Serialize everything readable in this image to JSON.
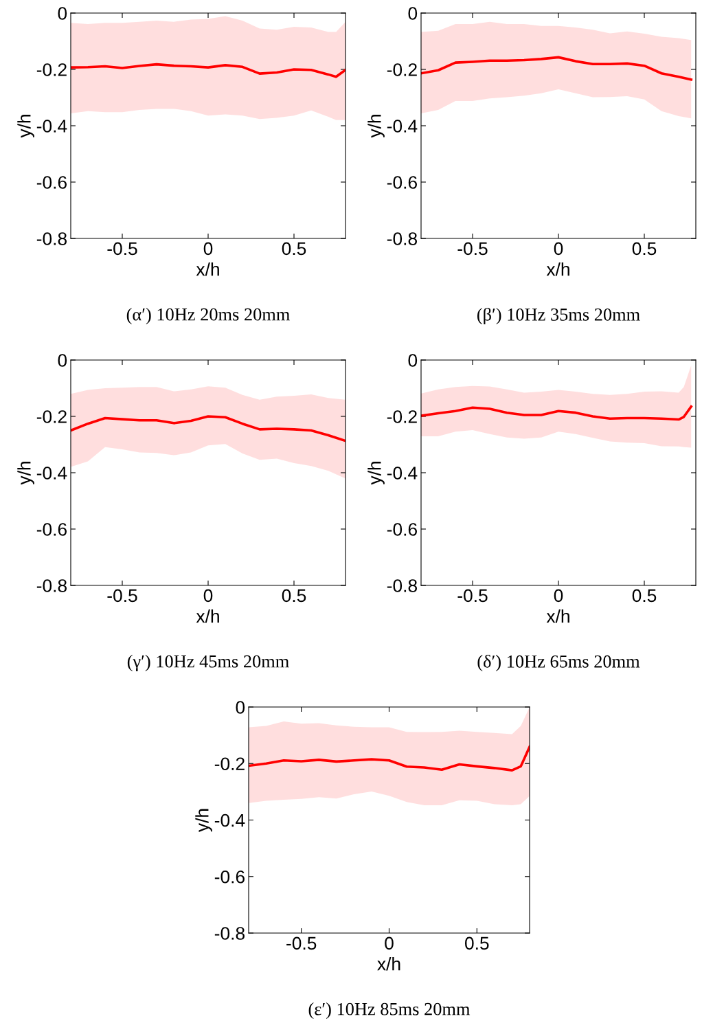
{
  "chart_data": [
    {
      "type": "line",
      "title": "(α′) 10Hz 20ms 20mm",
      "xlabel": "x/h",
      "ylabel": "y/h",
      "xlim": [
        -0.8,
        0.8
      ],
      "ylim": [
        -0.8,
        0
      ],
      "xticks": [
        -0.5,
        0,
        0.5
      ],
      "yticks": [
        0,
        -0.2,
        -0.4,
        -0.6,
        -0.8
      ],
      "grid": false,
      "x": [
        -0.8,
        -0.7,
        -0.6,
        -0.5,
        -0.4,
        -0.3,
        -0.2,
        -0.1,
        0,
        0.1,
        0.2,
        0.3,
        0.4,
        0.5,
        0.6,
        0.7,
        0.745,
        0.8
      ],
      "series": [
        {
          "color": "#ff0000",
          "values": [
            -0.193,
            -0.192,
            -0.189,
            -0.195,
            -0.188,
            -0.182,
            -0.187,
            -0.189,
            -0.193,
            -0.185,
            -0.191,
            -0.215,
            -0.211,
            -0.2,
            -0.202,
            -0.218,
            -0.226,
            -0.202
          ],
          "upper": [
            -0.035,
            -0.039,
            -0.035,
            -0.035,
            -0.031,
            -0.027,
            -0.031,
            -0.023,
            -0.021,
            -0.011,
            -0.027,
            -0.055,
            -0.059,
            -0.049,
            -0.051,
            -0.067,
            -0.067,
            -0.031
          ],
          "lower": [
            -0.356,
            -0.348,
            -0.352,
            -0.352,
            -0.344,
            -0.34,
            -0.34,
            -0.348,
            -0.364,
            -0.36,
            -0.364,
            -0.376,
            -0.372,
            -0.364,
            -0.346,
            -0.368,
            -0.38,
            -0.38
          ]
        }
      ]
    },
    {
      "type": "line",
      "title": "(β′) 10Hz 35ms 20mm",
      "xlabel": "x/h",
      "ylabel": "y/h",
      "xlim": [
        -0.8,
        0.8
      ],
      "ylim": [
        -0.8,
        0
      ],
      "xticks": [
        -0.5,
        0,
        0.5
      ],
      "yticks": [
        0,
        -0.2,
        -0.4,
        -0.6,
        -0.8
      ],
      "grid": false,
      "x": [
        -0.8,
        -0.7,
        -0.6,
        -0.5,
        -0.4,
        -0.3,
        -0.2,
        -0.1,
        0,
        0.1,
        0.2,
        0.3,
        0.4,
        0.5,
        0.6,
        0.7,
        0.773
      ],
      "series": [
        {
          "color": "#ff0000",
          "values": [
            -0.214,
            -0.203,
            -0.176,
            -0.173,
            -0.169,
            -0.169,
            -0.167,
            -0.163,
            -0.157,
            -0.171,
            -0.181,
            -0.181,
            -0.179,
            -0.187,
            -0.214,
            -0.226,
            -0.236
          ],
          "upper": [
            -0.067,
            -0.063,
            -0.039,
            -0.039,
            -0.031,
            -0.039,
            -0.039,
            -0.046,
            -0.046,
            -0.051,
            -0.059,
            -0.072,
            -0.065,
            -0.073,
            -0.084,
            -0.089,
            -0.096
          ],
          "lower": [
            -0.356,
            -0.344,
            -0.312,
            -0.312,
            -0.303,
            -0.299,
            -0.293,
            -0.285,
            -0.271,
            -0.285,
            -0.299,
            -0.298,
            -0.295,
            -0.307,
            -0.348,
            -0.366,
            -0.374
          ]
        }
      ]
    },
    {
      "type": "line",
      "title": "(γ′) 10Hz 45ms 20mm",
      "xlabel": "x/h",
      "ylabel": "y/h",
      "xlim": [
        -0.8,
        0.8
      ],
      "ylim": [
        -0.8,
        0
      ],
      "xticks": [
        -0.5,
        0,
        0.5
      ],
      "yticks": [
        0,
        -0.2,
        -0.4,
        -0.6,
        -0.8
      ],
      "grid": false,
      "x": [
        -0.8,
        -0.7,
        -0.6,
        -0.5,
        -0.4,
        -0.3,
        -0.2,
        -0.1,
        0,
        0.1,
        0.2,
        0.3,
        0.4,
        0.5,
        0.6,
        0.7,
        0.8
      ],
      "series": [
        {
          "color": "#ff0000",
          "values": [
            -0.25,
            -0.226,
            -0.206,
            -0.21,
            -0.214,
            -0.214,
            -0.224,
            -0.216,
            -0.2,
            -0.203,
            -0.226,
            -0.246,
            -0.244,
            -0.246,
            -0.25,
            -0.267,
            -0.287
          ],
          "upper": [
            -0.12,
            -0.106,
            -0.1,
            -0.098,
            -0.096,
            -0.096,
            -0.111,
            -0.104,
            -0.093,
            -0.098,
            -0.124,
            -0.141,
            -0.13,
            -0.127,
            -0.122,
            -0.135,
            -0.141
          ],
          "lower": [
            -0.379,
            -0.36,
            -0.309,
            -0.317,
            -0.328,
            -0.33,
            -0.338,
            -0.328,
            -0.303,
            -0.298,
            -0.332,
            -0.354,
            -0.35,
            -0.366,
            -0.376,
            -0.393,
            -0.421
          ]
        }
      ]
    },
    {
      "type": "line",
      "title": "(δ′) 10Hz 65ms 20mm",
      "xlabel": "x/h",
      "ylabel": "y/h",
      "xlim": [
        -0.8,
        0.8
      ],
      "ylim": [
        -0.8,
        0
      ],
      "xticks": [
        -0.5,
        0,
        0.5
      ],
      "yticks": [
        0,
        -0.2,
        -0.4,
        -0.6,
        -0.8
      ],
      "grid": false,
      "x": [
        -0.8,
        -0.7,
        -0.6,
        -0.5,
        -0.4,
        -0.3,
        -0.2,
        -0.1,
        0,
        0.1,
        0.2,
        0.3,
        0.4,
        0.5,
        0.6,
        0.7,
        0.73,
        0.773
      ],
      "series": [
        {
          "color": "#ff0000",
          "values": [
            -0.198,
            -0.189,
            -0.181,
            -0.169,
            -0.173,
            -0.187,
            -0.195,
            -0.195,
            -0.181,
            -0.187,
            -0.2,
            -0.208,
            -0.206,
            -0.206,
            -0.208,
            -0.211,
            -0.202,
            -0.165
          ],
          "upper": [
            -0.119,
            -0.104,
            -0.096,
            -0.092,
            -0.094,
            -0.104,
            -0.116,
            -0.112,
            -0.106,
            -0.112,
            -0.12,
            -0.124,
            -0.12,
            -0.112,
            -0.111,
            -0.116,
            -0.096,
            -0.019
          ],
          "lower": [
            -0.271,
            -0.271,
            -0.254,
            -0.249,
            -0.263,
            -0.275,
            -0.279,
            -0.275,
            -0.254,
            -0.263,
            -0.276,
            -0.289,
            -0.293,
            -0.295,
            -0.306,
            -0.307,
            -0.309,
            -0.311
          ]
        }
      ]
    },
    {
      "type": "line",
      "title": "(ε′) 10Hz 85ms 20mm",
      "xlabel": "x/h",
      "ylabel": "y/h",
      "xlim": [
        -0.8,
        0.8
      ],
      "ylim": [
        -0.8,
        0
      ],
      "xticks": [
        -0.5,
        0,
        0.5
      ],
      "yticks": [
        0,
        -0.2,
        -0.4,
        -0.6,
        -0.8
      ],
      "grid": false,
      "x": [
        -0.8,
        -0.7,
        -0.6,
        -0.5,
        -0.4,
        -0.3,
        -0.2,
        -0.1,
        0,
        0.1,
        0.2,
        0.3,
        0.4,
        0.5,
        0.6,
        0.7,
        0.75,
        0.8
      ],
      "series": [
        {
          "color": "#ff0000",
          "values": [
            -0.208,
            -0.2,
            -0.189,
            -0.192,
            -0.187,
            -0.193,
            -0.189,
            -0.185,
            -0.189,
            -0.211,
            -0.214,
            -0.222,
            -0.203,
            -0.21,
            -0.216,
            -0.224,
            -0.21,
            -0.141
          ],
          "upper": [
            -0.072,
            -0.067,
            -0.051,
            -0.059,
            -0.057,
            -0.065,
            -0.07,
            -0.072,
            -0.072,
            -0.088,
            -0.089,
            -0.088,
            -0.084,
            -0.088,
            -0.092,
            -0.096,
            -0.067,
            0
          ],
          "lower": [
            -0.34,
            -0.332,
            -0.328,
            -0.325,
            -0.319,
            -0.324,
            -0.309,
            -0.299,
            -0.314,
            -0.336,
            -0.348,
            -0.348,
            -0.33,
            -0.332,
            -0.344,
            -0.348,
            -0.344,
            -0.315
          ]
        }
      ]
    }
  ]
}
